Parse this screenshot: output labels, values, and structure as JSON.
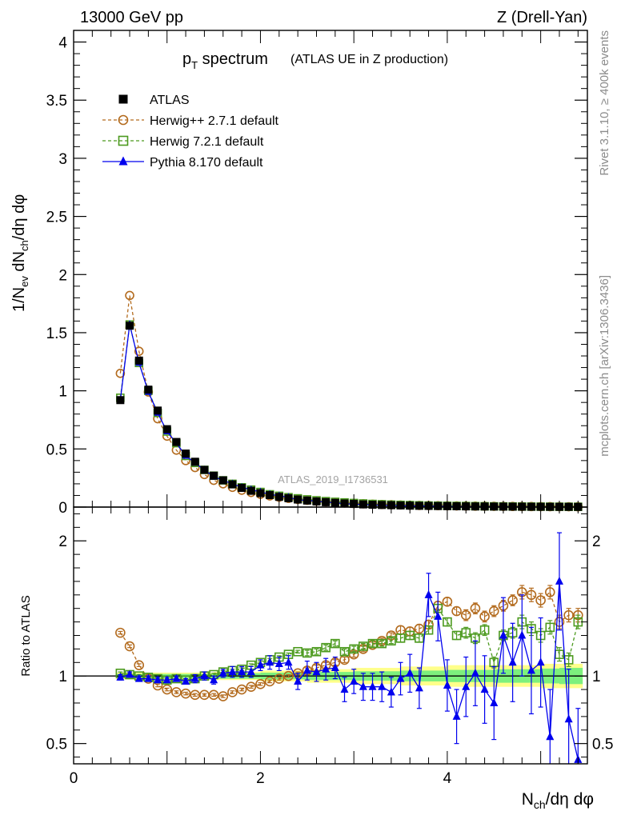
{
  "header": {
    "left": "13000 GeV pp",
    "right": "Z (Drell-Yan)"
  },
  "side_labels": {
    "rivet": "Rivet 3.1.10, ≥ 400k events",
    "mcplots": "mcplots.cern.ch [arXiv:1306.3436]"
  },
  "chart_data": [
    {
      "type": "scatter",
      "panel": "main",
      "title_main": "p",
      "title_sub": "T",
      "title_rest": " spectrum",
      "title_note": "(ATLAS UE in Z production)",
      "ylabel": "1/N_ev dN_ch/dη dφ",
      "ylim": [
        0,
        4.1
      ],
      "xlim": [
        0,
        5.5
      ],
      "yticks": [
        0,
        0.5,
        1,
        1.5,
        2,
        2.5,
        3,
        3.5,
        4
      ],
      "ytick_labels": [
        "0",
        "0.5",
        "1",
        "1.5",
        "2",
        "2.5",
        "3",
        "3.5",
        "4"
      ],
      "watermark": "ATLAS_2019_I1736531",
      "legend_position": "top-left",
      "x": [
        0.5,
        0.6,
        0.7,
        0.8,
        0.9,
        1.0,
        1.1,
        1.2,
        1.3,
        1.4,
        1.5,
        1.6,
        1.7,
        1.8,
        1.9,
        2.0,
        2.1,
        2.2,
        2.3,
        2.4,
        2.5,
        2.6,
        2.7,
        2.8,
        2.9,
        3.0,
        3.1,
        3.2,
        3.3,
        3.4,
        3.5,
        3.6,
        3.7,
        3.8,
        3.9,
        4.0,
        4.1,
        4.2,
        4.3,
        4.4,
        4.5,
        4.6,
        4.7,
        4.8,
        4.9,
        5.0,
        5.1,
        5.2,
        5.3,
        5.4
      ],
      "series": [
        {
          "name": "ATLAS",
          "color": "#000000",
          "marker": "filled-square",
          "values": [
            0.92,
            1.56,
            1.26,
            1.01,
            0.83,
            0.67,
            0.56,
            0.46,
            0.39,
            0.32,
            0.27,
            0.23,
            0.195,
            0.165,
            0.14,
            0.12,
            0.103,
            0.088,
            0.076,
            0.065,
            0.056,
            0.048,
            0.042,
            0.036,
            0.031,
            0.027,
            0.023,
            0.02,
            0.018,
            0.016,
            0.014,
            0.012,
            0.011,
            0.01,
            0.009,
            0.008,
            0.007,
            0.006,
            0.0055,
            0.005,
            0.0045,
            0.004,
            0.0036,
            0.0032,
            0.0029,
            0.0026,
            0.0023,
            0.0021,
            0.0019,
            0.0017
          ]
        },
        {
          "name": "Herwig++ 2.7.1 default",
          "color": "#b36b1e",
          "marker": "open-circle",
          "dash": true,
          "values": [
            1.15,
            1.82,
            1.34,
            0.99,
            0.76,
            0.61,
            0.49,
            0.4,
            0.34,
            0.28,
            0.23,
            0.2,
            0.17,
            0.145,
            0.126,
            0.11,
            0.096,
            0.085,
            0.075,
            0.066,
            0.058,
            0.051,
            0.045,
            0.04,
            0.035,
            0.031,
            0.028,
            0.025,
            0.022,
            0.02,
            0.018,
            0.016,
            0.014,
            0.013,
            0.012,
            0.011,
            0.01,
            0.009,
            0.008,
            0.0072,
            0.0065,
            0.006,
            0.0054,
            0.0049,
            0.0045,
            0.0041,
            0.0037,
            0.0034,
            0.0031,
            0.0028
          ]
        },
        {
          "name": "Herwig 7.2.1 default",
          "color": "#4c9a1e",
          "marker": "open-square",
          "dash": true,
          "values": [
            0.94,
            1.57,
            1.24,
            1.0,
            0.81,
            0.65,
            0.55,
            0.44,
            0.38,
            0.32,
            0.27,
            0.23,
            0.2,
            0.17,
            0.15,
            0.13,
            0.11,
            0.097,
            0.085,
            0.075,
            0.066,
            0.058,
            0.051,
            0.045,
            0.04,
            0.035,
            0.031,
            0.027,
            0.024,
            0.021,
            0.019,
            0.017,
            0.015,
            0.013,
            0.012,
            0.011,
            0.01,
            0.009,
            0.008,
            0.007,
            0.0063,
            0.0057,
            0.0051,
            0.0046,
            0.0042,
            0.0038,
            0.0034,
            0.0031,
            0.0028,
            0.0025
          ]
        },
        {
          "name": "Pythia 8.170 default",
          "color": "#0000ee",
          "marker": "filled-triangle",
          "values": [
            0.92,
            1.57,
            1.24,
            0.99,
            0.81,
            0.65,
            0.55,
            0.44,
            0.38,
            0.32,
            0.26,
            0.23,
            0.2,
            0.17,
            0.15,
            0.13,
            0.11,
            0.096,
            0.084,
            0.062,
            0.058,
            0.05,
            0.043,
            0.037,
            0.028,
            0.026,
            0.021,
            0.018,
            0.016,
            0.014,
            0.013,
            0.01,
            0.01,
            0.009,
            0.007,
            0.006,
            0.005,
            0.004,
            0.004,
            0.004,
            0.003,
            0.003,
            0.003,
            0.002,
            0.002,
            0.002,
            0.001,
            0.001,
            0.001,
            0.001
          ]
        }
      ]
    },
    {
      "type": "scatter",
      "panel": "ratio",
      "ylabel": "Ratio to ATLAS",
      "xlabel": "N_ch/dη dφ",
      "ylim": [
        0.35,
        2.25
      ],
      "xlim": [
        0,
        5.5
      ],
      "yticks": [
        0.5,
        1,
        2
      ],
      "ytick_labels": [
        "0.5",
        "1",
        "2"
      ],
      "xticks": [
        0,
        2,
        4
      ],
      "xtick_labels": [
        "0",
        "2",
        "4"
      ],
      "x": [
        0.5,
        0.6,
        0.7,
        0.8,
        0.9,
        1.0,
        1.1,
        1.2,
        1.3,
        1.4,
        1.5,
        1.6,
        1.7,
        1.8,
        1.9,
        2.0,
        2.1,
        2.2,
        2.3,
        2.4,
        2.5,
        2.6,
        2.7,
        2.8,
        2.9,
        3.0,
        3.1,
        3.2,
        3.3,
        3.4,
        3.5,
        3.6,
        3.7,
        3.8,
        3.9,
        4.0,
        4.1,
        4.2,
        4.3,
        4.4,
        4.5,
        4.6,
        4.7,
        4.8,
        4.9,
        5.0,
        5.1,
        5.2,
        5.3,
        5.4
      ],
      "band": {
        "x_edges": [
          0.45,
          1.0,
          1.5,
          2.0,
          2.5,
          3.0,
          3.5,
          4.0,
          4.5,
          5.0,
          5.2,
          5.45
        ],
        "green_half": [
          0.015,
          0.015,
          0.02,
          0.025,
          0.03,
          0.035,
          0.04,
          0.045,
          0.05,
          0.055,
          0.06
        ],
        "yellow_half": [
          0.025,
          0.025,
          0.03,
          0.04,
          0.05,
          0.06,
          0.07,
          0.08,
          0.08,
          0.09,
          0.09
        ],
        "green_color": "#7df07d",
        "yellow_color": "#ffff8a"
      },
      "series": [
        {
          "name": "Herwig++ 2.7.1 default",
          "color": "#b36b1e",
          "marker": "open-circle",
          "dash": true,
          "values": [
            1.32,
            1.22,
            1.08,
            0.98,
            0.93,
            0.9,
            0.88,
            0.87,
            0.86,
            0.86,
            0.86,
            0.85,
            0.88,
            0.9,
            0.92,
            0.94,
            0.96,
            0.98,
            1.0,
            1.02,
            1.04,
            1.06,
            1.08,
            1.1,
            1.12,
            1.16,
            1.2,
            1.23,
            1.26,
            1.3,
            1.34,
            1.33,
            1.35,
            1.38,
            1.52,
            1.55,
            1.48,
            1.45,
            1.5,
            1.44,
            1.48,
            1.52,
            1.56,
            1.62,
            1.6,
            1.56,
            1.62,
            1.4,
            1.45,
            1.45
          ]
        },
        {
          "name": "Herwig 7.2.1 default",
          "color": "#4c9a1e",
          "marker": "open-square",
          "dash": true,
          "values": [
            1.02,
            1.01,
            1.0,
            0.99,
            0.98,
            0.97,
            0.98,
            0.97,
            0.98,
            1.0,
            1.01,
            1.03,
            1.04,
            1.05,
            1.08,
            1.1,
            1.12,
            1.14,
            1.16,
            1.18,
            1.17,
            1.18,
            1.21,
            1.24,
            1.18,
            1.2,
            1.22,
            1.24,
            1.24,
            1.26,
            1.28,
            1.3,
            1.28,
            1.34,
            1.5,
            1.4,
            1.3,
            1.32,
            1.28,
            1.34,
            1.1,
            1.3,
            1.32,
            1.4,
            1.35,
            1.3,
            1.36,
            1.16,
            1.12,
            1.4
          ]
        },
        {
          "name": "Pythia 8.170 default",
          "color": "#0000ee",
          "marker": "filled-triangle",
          "values": [
            0.99,
            1.01,
            0.98,
            0.98,
            0.97,
            0.97,
            0.98,
            0.96,
            0.98,
            1.0,
            0.97,
            1.02,
            1.03,
            1.03,
            1.03,
            1.08,
            1.1,
            1.09,
            1.1,
            0.96,
            1.04,
            1.03,
            1.05,
            1.06,
            0.9,
            0.96,
            0.92,
            0.92,
            0.92,
            0.88,
            0.98,
            1.02,
            0.91,
            1.6,
            1.44,
            0.93,
            0.7,
            0.92,
            1.02,
            0.9,
            0.8,
            1.3,
            1.1,
            1.3,
            1.04,
            1.1,
            0.55,
            1.7,
            0.68,
            0.38
          ]
        }
      ],
      "pythia_err": [
        0.02,
        0.02,
        0.02,
        0.02,
        0.02,
        0.02,
        0.02,
        0.02,
        0.03,
        0.03,
        0.03,
        0.03,
        0.04,
        0.04,
        0.04,
        0.04,
        0.05,
        0.05,
        0.05,
        0.06,
        0.07,
        0.07,
        0.08,
        0.08,
        0.09,
        0.09,
        0.1,
        0.1,
        0.11,
        0.11,
        0.12,
        0.14,
        0.15,
        0.16,
        0.18,
        0.19,
        0.2,
        0.22,
        0.24,
        0.25,
        0.27,
        0.28,
        0.29,
        0.3,
        0.32,
        0.33,
        0.35,
        0.36,
        0.37,
        0.38
      ],
      "herwig_err": [
        0.01,
        0.01,
        0.01,
        0.01,
        0.01,
        0.01,
        0.01,
        0.01,
        0.01,
        0.01,
        0.01,
        0.01,
        0.01,
        0.01,
        0.01,
        0.01,
        0.01,
        0.01,
        0.01,
        0.01,
        0.02,
        0.02,
        0.02,
        0.02,
        0.02,
        0.02,
        0.02,
        0.02,
        0.02,
        0.02,
        0.03,
        0.03,
        0.03,
        0.03,
        0.03,
        0.03,
        0.03,
        0.04,
        0.04,
        0.04,
        0.04,
        0.04,
        0.04,
        0.05,
        0.05,
        0.05,
        0.05,
        0.05,
        0.05,
        0.05
      ]
    }
  ]
}
